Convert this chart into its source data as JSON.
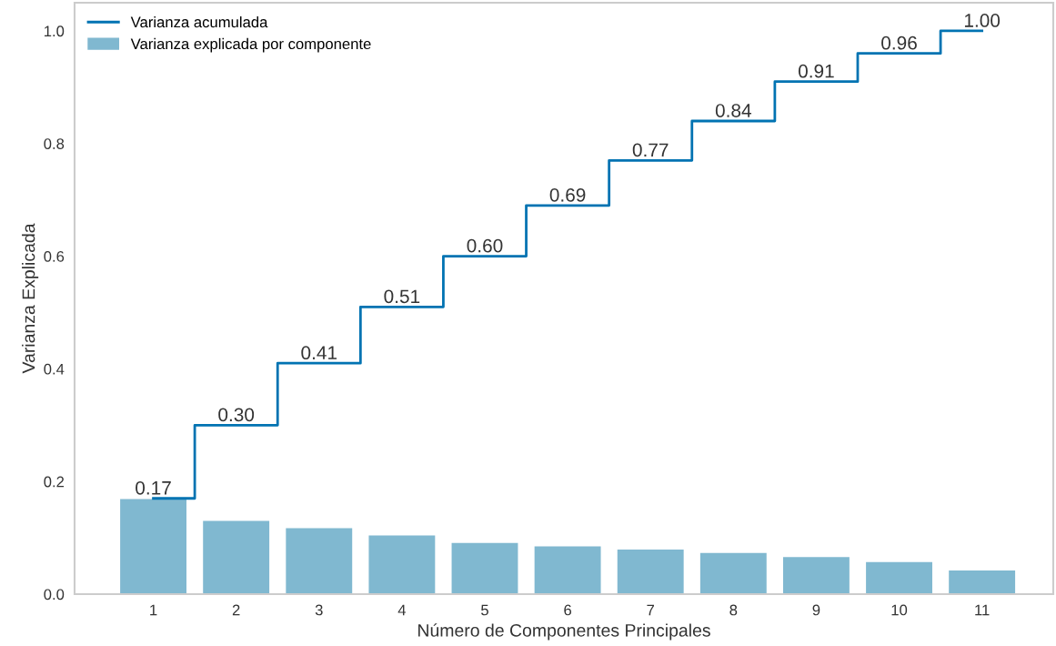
{
  "chart_data": {
    "type": "bar",
    "xlabel": "Número de Componentes Principales",
    "ylabel": "Varianza Explicada",
    "categories": [
      "1",
      "2",
      "3",
      "4",
      "5",
      "6",
      "7",
      "8",
      "9",
      "10",
      "11"
    ],
    "series": [
      {
        "name": "Varianza explicada por componente",
        "color": "#80b8d0",
        "values": [
          0.169,
          0.13,
          0.117,
          0.104,
          0.091,
          0.085,
          0.079,
          0.073,
          0.066,
          0.057,
          0.042
        ]
      },
      {
        "name": "Varianza acumulada",
        "type": "step",
        "color": "#0173b2",
        "values": [
          0.17,
          0.3,
          0.41,
          0.51,
          0.6,
          0.69,
          0.77,
          0.84,
          0.91,
          0.96,
          1.0
        ],
        "value_labels": [
          "0.17",
          "0.30",
          "0.41",
          "0.51",
          "0.60",
          "0.69",
          "0.77",
          "0.84",
          "0.91",
          "0.96",
          "1.00"
        ]
      }
    ],
    "ylim": [
      0,
      1.05
    ],
    "yticks": [
      {
        "value": 0,
        "label": "0.0"
      },
      0.2,
      0.4,
      0.6,
      0.8,
      {
        "value": 1,
        "label": "1.0"
      }
    ],
    "grid": false,
    "legend": "top left"
  }
}
